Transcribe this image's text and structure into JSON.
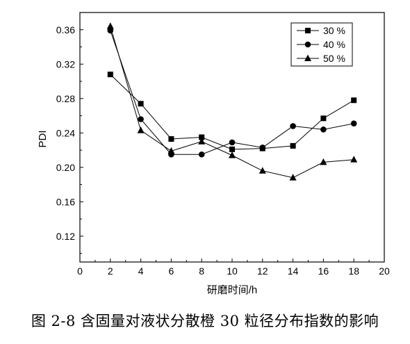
{
  "chart_data": {
    "type": "line",
    "xlabel": "研磨时间/h",
    "ylabel": "PDI",
    "xlim": [
      0,
      20
    ],
    "ylim": [
      0.09,
      0.38
    ],
    "xticks": [
      0,
      2,
      4,
      6,
      8,
      10,
      12,
      14,
      16,
      18,
      20
    ],
    "yticks": [
      0.12,
      0.16,
      0.2,
      0.24,
      0.28,
      0.32,
      0.36
    ],
    "grid": false,
    "legend": "top-right",
    "x": [
      2,
      4,
      6,
      8,
      10,
      12,
      14,
      16,
      18
    ],
    "series": [
      {
        "name": "30 %",
        "marker": "square",
        "values": [
          0.308,
          0.274,
          0.233,
          0.235,
          0.221,
          0.222,
          0.225,
          0.257,
          0.278
        ]
      },
      {
        "name": "40 %",
        "marker": "circle",
        "values": [
          0.359,
          0.256,
          0.215,
          0.215,
          0.229,
          0.223,
          0.248,
          0.244,
          0.251
        ]
      },
      {
        "name": "50 %",
        "marker": "triangle",
        "values": [
          0.364,
          0.243,
          0.219,
          0.23,
          0.214,
          0.196,
          0.188,
          0.206,
          0.209
        ]
      }
    ]
  },
  "caption": "图 2-8  含固量对液状分散橙 30 粒径分布指数的影响"
}
